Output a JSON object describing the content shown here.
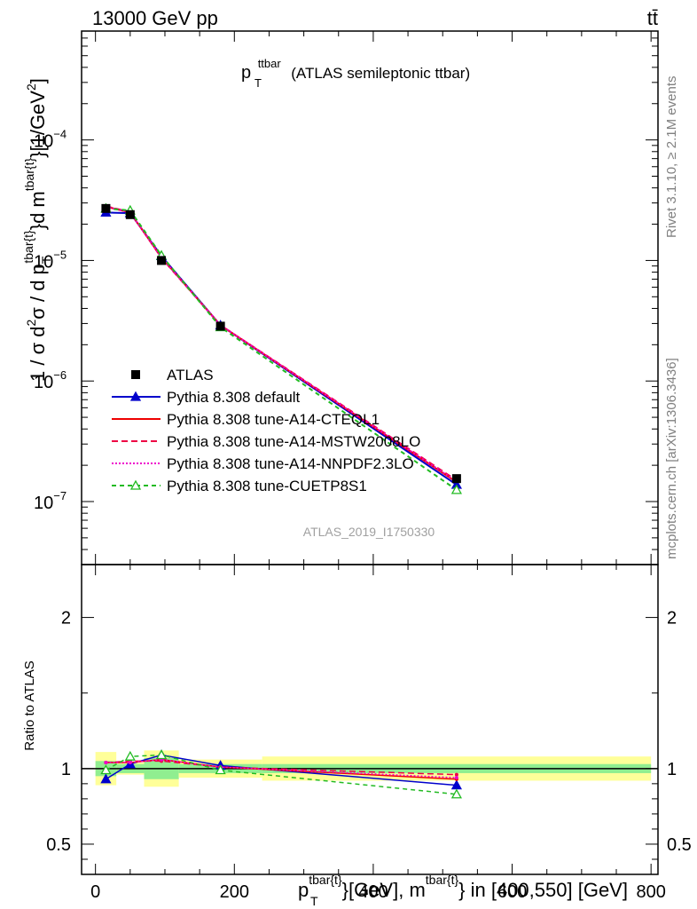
{
  "header": {
    "energy_label": "13000 GeV pp",
    "process_label": "tt̄"
  },
  "chart_data": {
    "type": "line",
    "title_main": "p",
    "title_sub": "T",
    "title_sup": "ttbar",
    "title_rest": "(ATLAS semileptonic ttbar)",
    "analysis_label": "ATLAS_2019_I1750330",
    "side_label_rivet": "Rivet 3.1.10, ≥ 2.1M events",
    "side_label_mcplots": "mcplots.cern.ch [arXiv:1306.3436]",
    "ylabel": "1 / σ d²σ / d p_T^{tbar{t}}d m^{tbar{t}}}[1/GeV²]",
    "ylabel_parts": {
      "a": "1 / σ d",
      "b": "2",
      "c": "σ / d p",
      "d": "T",
      "e": "tbar{t}",
      "f": "}d m",
      "g": "tbar{t}",
      "h": "}[1/GeV",
      "i": "2",
      "j": "]"
    },
    "xlabel": "p_T^{tbar{t}}[GeV], m^{tbar{t}} in [400,550] [GeV]",
    "xlabel_parts": {
      "a": "p",
      "b": "T",
      "c": "tbar{t}",
      "d": "}[GeV], m",
      "e": "tbar{t}",
      "f": "} in [400,550] [GeV]"
    },
    "ratio_ylabel": "Ratio to ATLAS",
    "xlim": [
      -20,
      810
    ],
    "ylim": [
      3e-08,
      0.0008
    ],
    "yscale": "log",
    "ratio_ylim": [
      0.3,
      2.35
    ],
    "x_ticks": [
      0,
      200,
      400,
      600,
      800
    ],
    "y_ticks": [
      {
        "value": 1e-07,
        "base": "10",
        "exp": "−7"
      },
      {
        "value": 1e-06,
        "base": "10",
        "exp": "−6"
      },
      {
        "value": 1e-05,
        "base": "10",
        "exp": "−5"
      },
      {
        "value": 0.0001,
        "base": "10",
        "exp": "−4"
      }
    ],
    "ratio_ticks": [
      0.5,
      1,
      2
    ],
    "legend_position": "lower-left",
    "data": {
      "name": "ATLAS",
      "x": [
        15,
        50,
        95,
        180,
        520
      ],
      "y": [
        2.7e-05,
        2.4e-05,
        1e-05,
        2.85e-06,
        1.55e-07
      ],
      "bins": [
        [
          0,
          30
        ],
        [
          30,
          70
        ],
        [
          70,
          120
        ],
        [
          120,
          240
        ],
        [
          240,
          800
        ]
      ],
      "ratio_band_inner": [
        0.05,
        0.03,
        0.07,
        0.03,
        0.03
      ],
      "ratio_band_outer": [
        0.11,
        0.04,
        0.12,
        0.06,
        0.08
      ]
    },
    "series": [
      {
        "name": "Pythia 8.308 default",
        "color": "#0000cc",
        "dash": "",
        "marker": "triangle-filled",
        "y": [
          2.5e-05,
          2.47e-05,
          1.09e-05,
          2.9e-06,
          1.38e-07
        ],
        "ratio": [
          0.93,
          1.03,
          1.09,
          1.02,
          0.89
        ]
      },
      {
        "name": "Pythia 8.308 tune-A14-CTEQL1",
        "color": "#ee0000",
        "dash": "",
        "marker": "none",
        "y": [
          2.8e-05,
          2.5e-05,
          1.06e-05,
          2.9e-06,
          1.45e-07
        ],
        "ratio": [
          1.04,
          1.04,
          1.06,
          1.01,
          0.93
        ]
      },
      {
        "name": "Pythia 8.308 tune-A14-MSTW2008LO",
        "color": "#ee0044",
        "dash": "7,4",
        "marker": "none",
        "y": [
          2.82e-05,
          2.52e-05,
          1.05e-05,
          2.9e-06,
          1.5e-07
        ],
        "ratio": [
          1.04,
          1.05,
          1.05,
          1.01,
          0.96
        ]
      },
      {
        "name": "Pythia 8.308 tune-A14-NNPDF2.3LO",
        "color": "#ee00cc",
        "dash": "2,2",
        "marker": "none",
        "y": [
          2.8e-05,
          2.5e-05,
          1.06e-05,
          2.9e-06,
          1.47e-07
        ],
        "ratio": [
          1.04,
          1.04,
          1.06,
          1.01,
          0.94
        ]
      },
      {
        "name": "Pythia 8.308 tune-CUETP8S1",
        "color": "#22bb22",
        "dash": "5,4",
        "marker": "triangle-open",
        "y": [
          2.7e-05,
          2.6e-05,
          1.1e-05,
          2.8e-06,
          1.25e-07
        ],
        "ratio": [
          0.99,
          1.08,
          1.09,
          0.99,
          0.83
        ]
      }
    ]
  }
}
